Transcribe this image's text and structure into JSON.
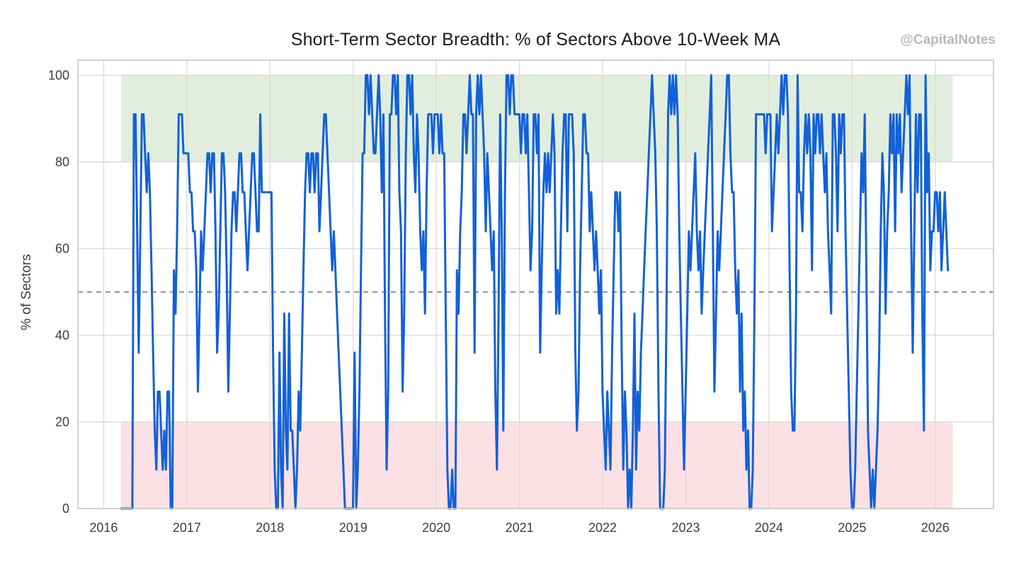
{
  "header": {
    "title": "Short-Term Sector Breadth: % of Sectors Above 10-Week MA",
    "watermark": "@CapitalNotes"
  },
  "chart_data": {
    "type": "line",
    "title": "Short-Term Sector Breadth: % of Sectors Above 10-Week MA",
    "xlabel": "",
    "ylabel": "% of Sectors",
    "x_ticks": [
      2016,
      2017,
      2018,
      2019,
      2020,
      2021,
      2022,
      2023,
      2024,
      2025,
      2026
    ],
    "y_ticks": [
      0,
      20,
      40,
      60,
      80,
      100
    ],
    "xlim": [
      2015.69,
      2026.7
    ],
    "ylim": [
      0,
      103.5
    ],
    "grid": true,
    "legend": "none",
    "reference_line": {
      "y": 50,
      "style": "dashed",
      "color": "#7a7a7a"
    },
    "bands": [
      {
        "name": "overbought-zone",
        "y_from": 80,
        "y_to": 100,
        "x_from": 2016.21,
        "x_to": 2026.21,
        "color": "#e2eedd"
      },
      {
        "name": "oversold-zone",
        "y_from": 0,
        "y_to": 20,
        "x_from": 2016.21,
        "x_to": 2026.21,
        "color": "#fce1e4"
      }
    ],
    "series": [
      {
        "name": "% of sectors above 10-week MA (weekly)",
        "color": "#1161d8",
        "x_start": 2016.21,
        "x_step": 0.0192307,
        "values": [
          0,
          0,
          0,
          0,
          0,
          0,
          0,
          0,
          91,
          91,
          64,
          36,
          64,
          91,
          91,
          82,
          73,
          82,
          73,
          55,
          36,
          18,
          9,
          27,
          27,
          18,
          9,
          18,
          9,
          27,
          27,
          0,
          0,
          55,
          45,
          64,
          91,
          91,
          91,
          82,
          82,
          82,
          82,
          73,
          73,
          64,
          64,
          55,
          27,
          45,
          64,
          55,
          64,
          73,
          82,
          82,
          73,
          82,
          82,
          64,
          36,
          45,
          64,
          82,
          82,
          73,
          55,
          27,
          45,
          64,
          73,
          73,
          64,
          73,
          82,
          82,
          73,
          73,
          64,
          55,
          64,
          73,
          82,
          82,
          73,
          64,
          64,
          91,
          73,
          73,
          73,
          73,
          73,
          73,
          73,
          36,
          9,
          0,
          0,
          36,
          9,
          0,
          45,
          18,
          9,
          45,
          18,
          18,
          9,
          0,
          9,
          27,
          18,
          36,
          55,
          73,
          82,
          82,
          73,
          82,
          82,
          73,
          82,
          82,
          64,
          73,
          82,
          91,
          91,
          82,
          73,
          64,
          55,
          64,
          55,
          45,
          36,
          27,
          18,
          9,
          0,
          0,
          0,
          0,
          0,
          0,
          36,
          0,
          9,
          27,
          55,
          82,
          82,
          100,
          100,
          91,
          100,
          91,
          82,
          82,
          91,
          100,
          91,
          73,
          91,
          45,
          9,
          27,
          91,
          91,
          100,
          100,
          91,
          100,
          73,
          64,
          27,
          45,
          82,
          100,
          100,
          91,
          100,
          82,
          73,
          91,
          82,
          64,
          55,
          64,
          45,
          73,
          91,
          91,
          91,
          82,
          91,
          91,
          91,
          82,
          91,
          82,
          82,
          45,
          9,
          0,
          0,
          9,
          0,
          0,
          55,
          45,
          64,
          73,
          91,
          91,
          82,
          91,
          100,
          91,
          91,
          36,
          91,
          100,
          91,
          100,
          91,
          82,
          64,
          82,
          73,
          64,
          55,
          64,
          27,
          9,
          45,
          91,
          64,
          18,
          73,
          100,
          100,
          91,
          100,
          100,
          91,
          91,
          91,
          91,
          82,
          91,
          91,
          82,
          91,
          73,
          55,
          64,
          91,
          91,
          82,
          91,
          36,
          55,
          73,
          82,
          73,
          82,
          73,
          82,
          91,
          82,
          45,
          55,
          45,
          64,
          82,
          91,
          91,
          64,
          91,
          91,
          91,
          82,
          36,
          18,
          27,
          55,
          73,
          91,
          91,
          82,
          82,
          64,
          73,
          64,
          55,
          64,
          55,
          45,
          55,
          27,
          18,
          9,
          27,
          18,
          9,
          36,
          55,
          73,
          73,
          64,
          73,
          36,
          9,
          27,
          18,
          0,
          9,
          0,
          18,
          45,
          9,
          27,
          18,
          36,
          45,
          55,
          64,
          73,
          82,
          91,
          100,
          91,
          82,
          64,
          27,
          0,
          0,
          0,
          9,
          45,
          91,
          100,
          91,
          100,
          91,
          100,
          91,
          64,
          45,
          27,
          9,
          27,
          45,
          64,
          55,
          64,
          73,
          82,
          64,
          55,
          64,
          45,
          55,
          64,
          73,
          82,
          91,
          100,
          64,
          27,
          45,
          64,
          55,
          64,
          73,
          82,
          91,
          100,
          100,
          82,
          73,
          73,
          55,
          45,
          55,
          27,
          45,
          18,
          27,
          9,
          18,
          0,
          0,
          9,
          45,
          91,
          91,
          91,
          91,
          91,
          91,
          82,
          91,
          91,
          91,
          64,
          73,
          82,
          91,
          82,
          91,
          100,
          91,
          100,
          100,
          91,
          55,
          27,
          18,
          18,
          45,
          100,
          73,
          73,
          64,
          82,
          91,
          82,
          91,
          82,
          55,
          91,
          82,
          91,
          91,
          82,
          91,
          82,
          73,
          82,
          64,
          55,
          45,
          91,
          91,
          82,
          64,
          91,
          82,
          91,
          91,
          64,
          45,
          27,
          9,
          0,
          0,
          9,
          27,
          45,
          64,
          82,
          73,
          91,
          55,
          18,
          9,
          0,
          9,
          0,
          9,
          18,
          36,
          64,
          82,
          73,
          45,
          64,
          73,
          91,
          82,
          91,
          64,
          91,
          82,
          91,
          73,
          82,
          91,
          100,
          91,
          100,
          64,
          36,
          64,
          91,
          73,
          91,
          91,
          45,
          18,
          100,
          73,
          82,
          55,
          64,
          64,
          73,
          73,
          64,
          73,
          55,
          64,
          73,
          64,
          55
        ]
      }
    ]
  },
  "layout_colors": {
    "grid": "#d9d9d9",
    "plot_border": "#c9c9c9",
    "tick_text": "#3d3d3d",
    "title_text": "#1c1c1c",
    "watermark_text": "#bababa"
  }
}
